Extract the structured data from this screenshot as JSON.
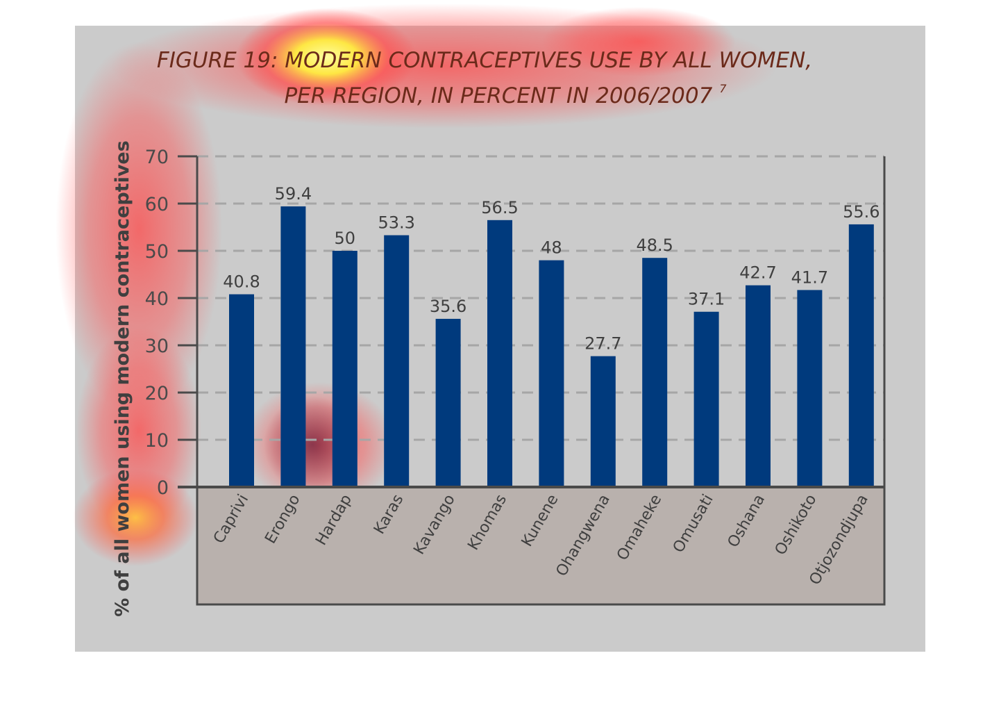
{
  "chart_data": {
    "type": "bar",
    "title_line1": "FIGURE 19: MODERN CONTRACEPTIVES USE BY ALL WOMEN,",
    "title_line2": "PER REGION, IN PERCENT IN 2006/2007",
    "title_note": "7",
    "xlabel": "",
    "ylabel": "% of all women using modern contraceptives",
    "ylim": [
      0,
      70
    ],
    "yticks": [
      0,
      10,
      20,
      30,
      40,
      50,
      60,
      70
    ],
    "grid": "horizontal dashed",
    "categories": [
      "Caprivi",
      "Erongo",
      "Hardap",
      "Karas",
      "Kavango",
      "Khomas",
      "Kunene",
      "Ohangwena",
      "Omaheke",
      "Omusati",
      "Oshana",
      "Oshikoto",
      "Otjozondjupa"
    ],
    "values": [
      40.8,
      59.4,
      50,
      53.3,
      35.6,
      56.5,
      48,
      27.7,
      48.5,
      37.1,
      42.7,
      41.7,
      55.6
    ],
    "data_labels": [
      "40.8",
      "59.4",
      "50",
      "53.3",
      "35.6",
      "56.5",
      "48",
      "27.7",
      "48.5",
      "37.1",
      "42.7",
      "41.7",
      "55.6"
    ],
    "colors": {
      "bar": "#003a7d",
      "panel": "#cbcbcb",
      "axis_band": "#b9b1ad",
      "axis": "#4a4a4a",
      "grid": "#a6a6a6",
      "title": "#6b2a1a"
    }
  }
}
